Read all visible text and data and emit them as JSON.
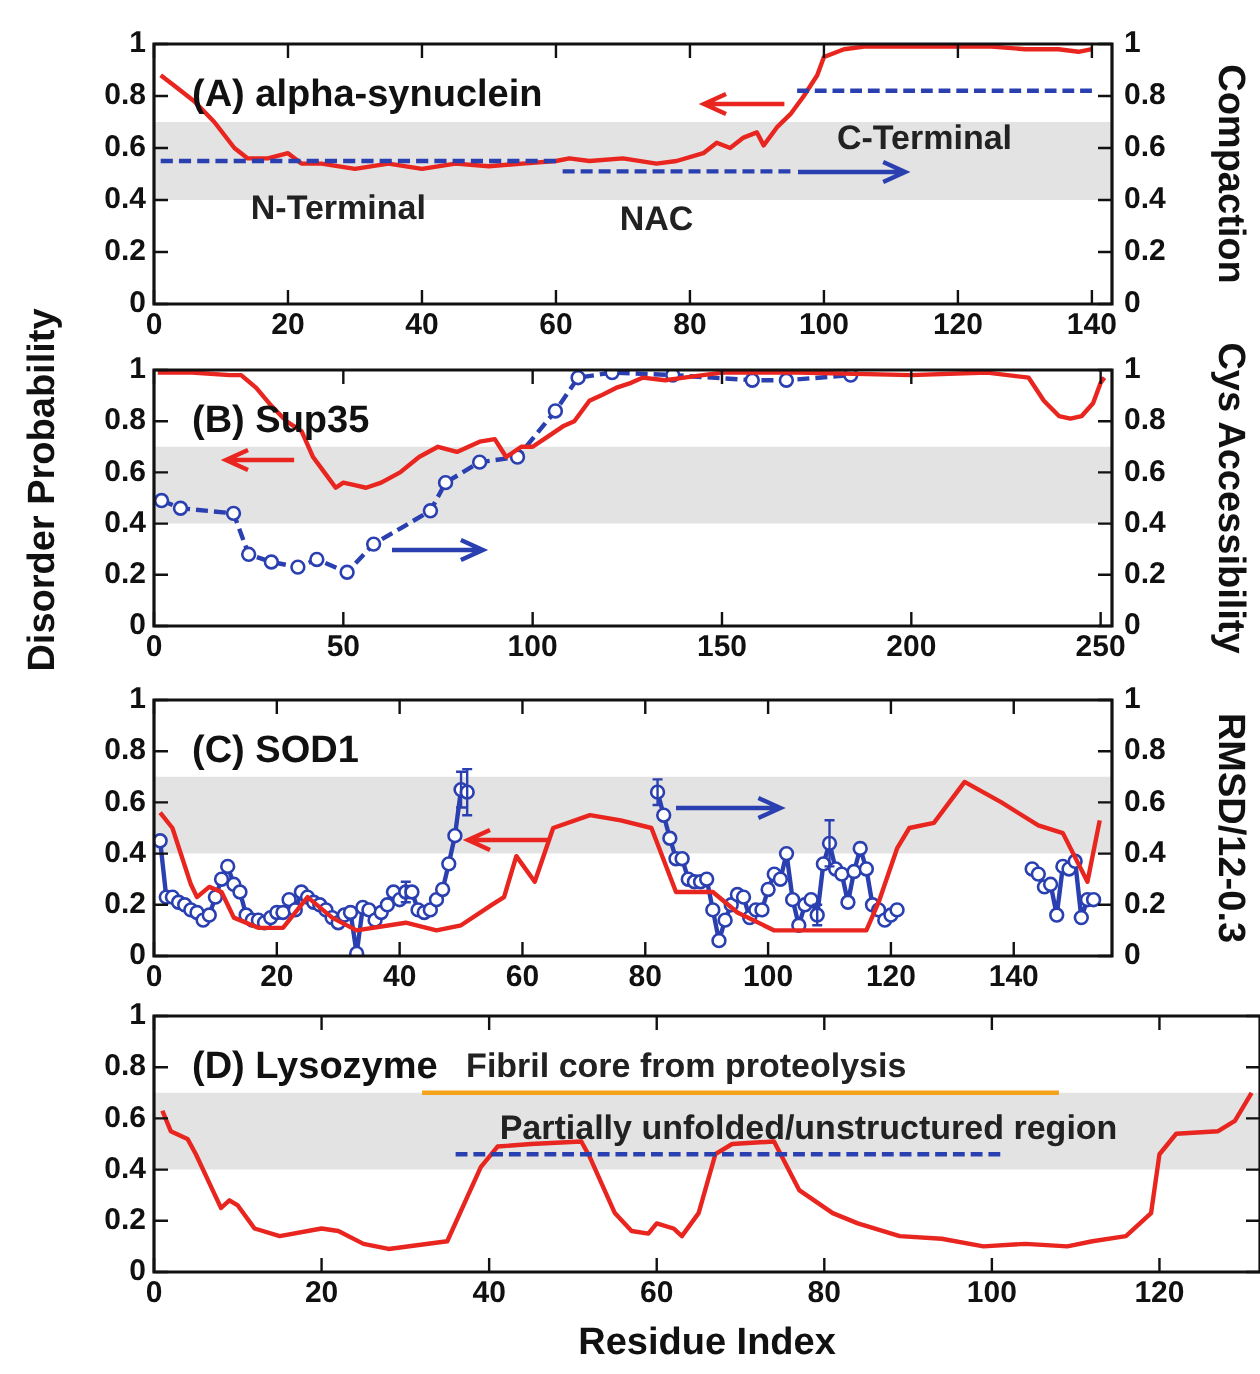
{
  "chart_data": [
    {
      "type": "line",
      "title": "(A) alpha-synuclein",
      "y2label": "Compaction",
      "xlim": [
        0,
        143
      ],
      "xticks": [
        0,
        20,
        40,
        60,
        80,
        100,
        120,
        140
      ],
      "ylim": [
        0,
        1
      ],
      "yticks": [
        0,
        0.2,
        0.4,
        0.6,
        0.8,
        1
      ],
      "y2lim": [
        0,
        1
      ],
      "y2ticks": [
        0,
        0.2,
        0.4,
        0.6,
        0.8,
        1
      ],
      "grid": false,
      "legend": false,
      "bands": [
        {
          "axis": "y",
          "from": 0.4,
          "to": 0.7,
          "color": "#e3e3e3"
        }
      ],
      "series": [
        {
          "color": "#e8251f",
          "marker": "none",
          "line_style": "solid",
          "x": [
            1,
            3,
            6,
            9,
            12,
            14,
            17,
            20,
            22,
            25,
            30,
            35,
            40,
            45,
            50,
            55,
            60,
            62,
            65,
            70,
            75,
            78,
            82,
            84,
            86,
            88,
            90,
            91,
            93,
            95,
            97,
            99,
            100,
            103,
            106,
            110,
            115,
            120,
            125,
            130,
            135,
            138,
            140
          ],
          "values": [
            0.88,
            0.84,
            0.78,
            0.7,
            0.6,
            0.56,
            0.56,
            0.58,
            0.54,
            0.54,
            0.52,
            0.54,
            0.52,
            0.54,
            0.53,
            0.54,
            0.55,
            0.56,
            0.55,
            0.56,
            0.54,
            0.55,
            0.58,
            0.62,
            0.6,
            0.64,
            0.66,
            0.61,
            0.68,
            0.73,
            0.8,
            0.88,
            0.95,
            0.98,
            0.99,
            0.99,
            0.99,
            0.99,
            0.99,
            0.98,
            0.98,
            0.97,
            0.98
          ]
        },
        {
          "name": "N-Terminal",
          "color": "#2a3fb0",
          "marker": "none",
          "line_style": "dashed",
          "x": [
            1,
            60
          ],
          "values": [
            0.55,
            0.55
          ]
        },
        {
          "name": "NAC",
          "color": "#2a3fb0",
          "marker": "none",
          "line_style": "dashed",
          "x": [
            61,
            95
          ],
          "values": [
            0.51,
            0.51
          ]
        },
        {
          "name": "C-Terminal",
          "color": "#2a3fb0",
          "marker": "none",
          "line_style": "dashed",
          "x": [
            96,
            140
          ],
          "values": [
            0.82,
            0.82
          ]
        }
      ]
    },
    {
      "type": "line",
      "title": "(B) Sup35",
      "ylabel": "Disorder Probability",
      "y2label": "Cys Accessibility",
      "xlim": [
        0,
        253
      ],
      "xticks": [
        0,
        50,
        100,
        150,
        200,
        250
      ],
      "ylim": [
        0,
        1
      ],
      "yticks": [
        0,
        0.2,
        0.4,
        0.6,
        0.8,
        1
      ],
      "y2lim": [
        0,
        1
      ],
      "y2ticks": [
        0,
        0.2,
        0.4,
        0.6,
        0.8,
        1
      ],
      "grid": false,
      "legend": false,
      "bands": [
        {
          "axis": "y",
          "from": 0.4,
          "to": 0.7,
          "color": "#e3e3e3"
        }
      ],
      "series": [
        {
          "color": "#e8251f",
          "marker": "none",
          "line_style": "solid",
          "x": [
            1,
            10,
            20,
            23,
            27,
            31,
            35,
            39,
            42,
            45,
            48,
            50,
            53,
            56,
            60,
            65,
            70,
            75,
            80,
            86,
            90,
            93,
            97,
            100,
            104,
            108,
            111,
            115,
            118,
            122,
            126,
            129,
            135,
            140,
            150,
            170,
            200,
            220,
            231,
            235,
            239,
            242,
            245,
            248,
            250,
            251
          ],
          "values": [
            0.99,
            0.99,
            0.98,
            0.98,
            0.93,
            0.86,
            0.8,
            0.76,
            0.66,
            0.6,
            0.54,
            0.56,
            0.55,
            0.54,
            0.56,
            0.6,
            0.66,
            0.7,
            0.68,
            0.72,
            0.73,
            0.66,
            0.7,
            0.7,
            0.74,
            0.78,
            0.8,
            0.88,
            0.9,
            0.93,
            0.95,
            0.97,
            0.96,
            0.97,
            0.99,
            0.99,
            0.98,
            0.99,
            0.97,
            0.88,
            0.82,
            0.81,
            0.82,
            0.87,
            0.95,
            0.97
          ]
        },
        {
          "color": "#2a3fb0",
          "marker": "circle",
          "line_style": "dashed",
          "x": [
            2,
            7,
            21,
            25,
            31,
            38,
            43,
            51,
            58,
            73,
            77,
            86,
            96,
            106,
            112,
            121,
            137,
            158,
            167,
            184
          ],
          "values": [
            0.49,
            0.46,
            0.44,
            0.28,
            0.25,
            0.23,
            0.26,
            0.21,
            0.32,
            0.45,
            0.56,
            0.64,
            0.66,
            0.84,
            0.97,
            0.99,
            0.98,
            0.96,
            0.96,
            0.98
          ]
        }
      ]
    },
    {
      "type": "line",
      "title": "(C) SOD1",
      "y2label": "RMSD/12-0.3",
      "xlim": [
        0,
        156
      ],
      "xticks": [
        0,
        20,
        40,
        60,
        80,
        100,
        120,
        140
      ],
      "ylim": [
        0,
        1
      ],
      "yticks": [
        0,
        0.2,
        0.4,
        0.6,
        0.8,
        1
      ],
      "y2lim": [
        0,
        1
      ],
      "y2ticks": [
        0,
        0.2,
        0.4,
        0.6,
        0.8,
        1
      ],
      "grid": false,
      "legend": false,
      "bands": [
        {
          "axis": "y",
          "from": 0.4,
          "to": 0.7,
          "color": "#e3e3e3"
        }
      ],
      "series": [
        {
          "color": "#e8251f",
          "marker": "none",
          "line_style": "solid",
          "x": [
            1,
            3,
            6,
            7,
            9,
            11,
            13,
            17,
            21,
            25,
            29,
            33,
            41,
            46,
            50,
            55,
            57,
            59,
            62,
            65,
            71,
            76,
            81,
            85,
            91,
            95,
            101,
            110,
            116,
            118,
            121,
            123,
            127,
            132,
            138,
            144,
            148,
            152,
            154
          ],
          "values": [
            0.56,
            0.5,
            0.28,
            0.23,
            0.27,
            0.25,
            0.15,
            0.11,
            0.11,
            0.23,
            0.15,
            0.1,
            0.13,
            0.1,
            0.12,
            0.2,
            0.23,
            0.39,
            0.29,
            0.5,
            0.55,
            0.53,
            0.5,
            0.25,
            0.25,
            0.17,
            0.1,
            0.1,
            0.1,
            0.21,
            0.42,
            0.5,
            0.52,
            0.68,
            0.6,
            0.51,
            0.48,
            0.29,
            0.53
          ]
        },
        {
          "color": "#2a3fb0",
          "marker": "circle",
          "line_style": "solid",
          "x": [
            1,
            2,
            3,
            4,
            5,
            6,
            7,
            8,
            9,
            10,
            11,
            12,
            13,
            14,
            15,
            16,
            17,
            18,
            19,
            20,
            21,
            22,
            23,
            24,
            25,
            26,
            27,
            28,
            29,
            30,
            31,
            32,
            33,
            34,
            35,
            36,
            37,
            38,
            39,
            40,
            41,
            42,
            43,
            44,
            45,
            46,
            47,
            48,
            49,
            50,
            51,
            52,
            82,
            83,
            84,
            85,
            86,
            87,
            88,
            89,
            90,
            91,
            92,
            93,
            94,
            95,
            96,
            97,
            98,
            99,
            100,
            101,
            102,
            103,
            104,
            105,
            106,
            107,
            108,
            109,
            110,
            111,
            112,
            113,
            114,
            115,
            116,
            117,
            118,
            119,
            120,
            121,
            122,
            143,
            144,
            145,
            146,
            147,
            148,
            149,
            150,
            151,
            152,
            153
          ],
          "values": [
            0.45,
            0.23,
            0.23,
            0.21,
            0.2,
            0.18,
            0.17,
            0.14,
            0.16,
            0.23,
            0.3,
            0.35,
            0.28,
            0.25,
            0.16,
            0.14,
            0.14,
            0.13,
            0.15,
            0.17,
            0.17,
            0.22,
            0.18,
            0.25,
            0.23,
            0.21,
            0.2,
            0.18,
            0.15,
            0.13,
            0.16,
            0.17,
            0.01,
            0.19,
            0.18,
            0.14,
            0.17,
            0.2,
            0.25,
            0.22,
            0.25,
            0.25,
            0.18,
            0.17,
            0.18,
            0.22,
            0.26,
            0.36,
            0.47,
            0.65,
            0.64,
            null,
            0.64,
            0.55,
            0.46,
            0.38,
            0.38,
            0.3,
            0.29,
            0.29,
            0.3,
            0.18,
            0.06,
            0.14,
            0.2,
            0.24,
            0.23,
            0.15,
            0.18,
            0.18,
            0.26,
            0.32,
            0.3,
            0.4,
            0.22,
            0.12,
            0.2,
            0.22,
            0.16,
            0.36,
            0.44,
            0.34,
            0.32,
            0.21,
            0.33,
            0.42,
            0.34,
            0.2,
            0.18,
            0.14,
            0.16,
            0.18,
            null,
            0.34,
            0.32,
            0.27,
            0.28,
            0.16,
            0.35,
            0.34,
            0.37,
            0.15,
            0.22,
            0.22
          ],
          "errors": [
            null,
            null,
            null,
            null,
            null,
            null,
            null,
            null,
            null,
            null,
            null,
            null,
            null,
            null,
            null,
            null,
            null,
            null,
            null,
            null,
            null,
            null,
            null,
            null,
            null,
            null,
            null,
            null,
            null,
            null,
            null,
            null,
            null,
            null,
            null,
            null,
            null,
            null,
            null,
            null,
            0.04,
            null,
            null,
            null,
            null,
            null,
            null,
            null,
            null,
            0.07,
            0.09,
            null,
            0.05,
            null,
            null,
            null,
            null,
            null,
            null,
            null,
            null,
            null,
            null,
            null,
            null,
            null,
            null,
            null,
            null,
            null,
            null,
            null,
            null,
            null,
            null,
            null,
            null,
            null,
            0.04,
            null,
            0.09,
            null,
            null,
            null,
            null,
            null,
            null,
            null,
            null,
            null,
            null,
            null,
            null,
            null,
            null,
            null,
            null,
            null,
            null,
            null,
            null,
            null,
            null,
            null
          ]
        }
      ]
    },
    {
      "type": "line",
      "title": "(D) Lysozyme",
      "xlabel": "Residue Index",
      "xlim": [
        0,
        132
      ],
      "xticks": [
        0,
        20,
        40,
        60,
        80,
        100,
        120
      ],
      "ylim": [
        0,
        1
      ],
      "yticks": [
        0,
        0.2,
        0.4,
        0.6,
        0.8,
        1
      ],
      "grid": false,
      "legend": false,
      "bands": [
        {
          "axis": "y",
          "from": 0.4,
          "to": 0.7,
          "color": "#e3e3e3"
        }
      ],
      "series": [
        {
          "color": "#e8251f",
          "marker": "none",
          "line_style": "solid",
          "x": [
            1,
            2,
            4,
            5,
            7,
            8,
            9,
            10,
            12,
            15,
            20,
            22,
            25,
            28,
            35,
            39,
            41,
            45,
            51,
            52,
            55,
            57,
            59,
            60,
            62,
            63,
            65,
            67,
            69,
            74,
            77,
            81,
            84,
            89,
            94,
            99,
            104,
            109,
            112,
            116,
            119,
            120,
            122,
            127,
            129,
            131
          ],
          "values": [
            0.63,
            0.55,
            0.52,
            0.46,
            0.32,
            0.25,
            0.28,
            0.26,
            0.17,
            0.14,
            0.17,
            0.16,
            0.11,
            0.09,
            0.12,
            0.41,
            0.49,
            0.5,
            0.51,
            0.45,
            0.23,
            0.16,
            0.15,
            0.19,
            0.17,
            0.14,
            0.23,
            0.46,
            0.5,
            0.51,
            0.32,
            0.23,
            0.19,
            0.14,
            0.13,
            0.1,
            0.11,
            0.1,
            0.12,
            0.14,
            0.23,
            0.46,
            0.54,
            0.55,
            0.59,
            0.7
          ]
        },
        {
          "name": "Fibril core from proteolysis",
          "color": "#f5a21b",
          "marker": "none",
          "line_style": "solid",
          "x": [
            32,
            108
          ],
          "values": [
            0.7,
            0.7
          ]
        },
        {
          "name": "Partially unfolded/unstructured region",
          "color": "#2a3fb0",
          "marker": "none",
          "line_style": "dashed",
          "x": [
            36,
            101
          ],
          "values": [
            0.46,
            0.46
          ]
        }
      ]
    }
  ]
}
